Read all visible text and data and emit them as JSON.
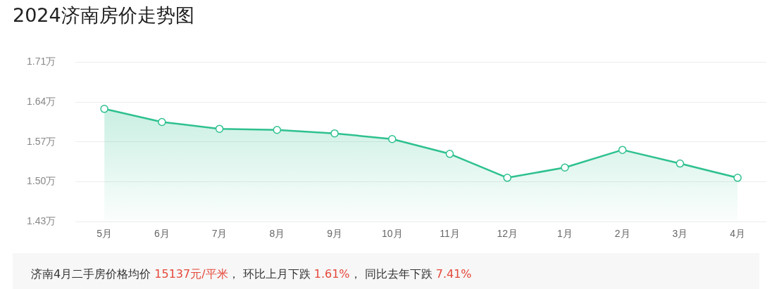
{
  "chart_data": {
    "type": "area",
    "title": "2024济南房价走势图",
    "categories": [
      "5月",
      "6月",
      "7月",
      "8月",
      "9月",
      "10月",
      "11月",
      "12月",
      "1月",
      "2月",
      "3月",
      "4月"
    ],
    "series": [
      {
        "color": "#2ec18e",
        "values": [
          1.628,
          1.605,
          1.593,
          1.591,
          1.585,
          1.575,
          1.549,
          1.507,
          1.525,
          1.556,
          1.532,
          1.507
        ]
      }
    ],
    "ylim": [
      1.43,
      1.71
    ],
    "yticks": [
      {
        "value": 1.43,
        "label": "1.43万"
      },
      {
        "value": 1.5,
        "label": "1.50万"
      },
      {
        "value": 1.57,
        "label": "1.57万"
      },
      {
        "value": 1.64,
        "label": "1.64万"
      },
      {
        "value": 1.71,
        "label": "1.71万"
      }
    ],
    "grid": "y",
    "legend": false,
    "marker": "circle",
    "line_style": "solid",
    "annotations": [
      "济南4月二手房价格均价 15137元/平米， 环比上月下跌 1.61%， 同比去年下跌 7.41%"
    ]
  }
}
